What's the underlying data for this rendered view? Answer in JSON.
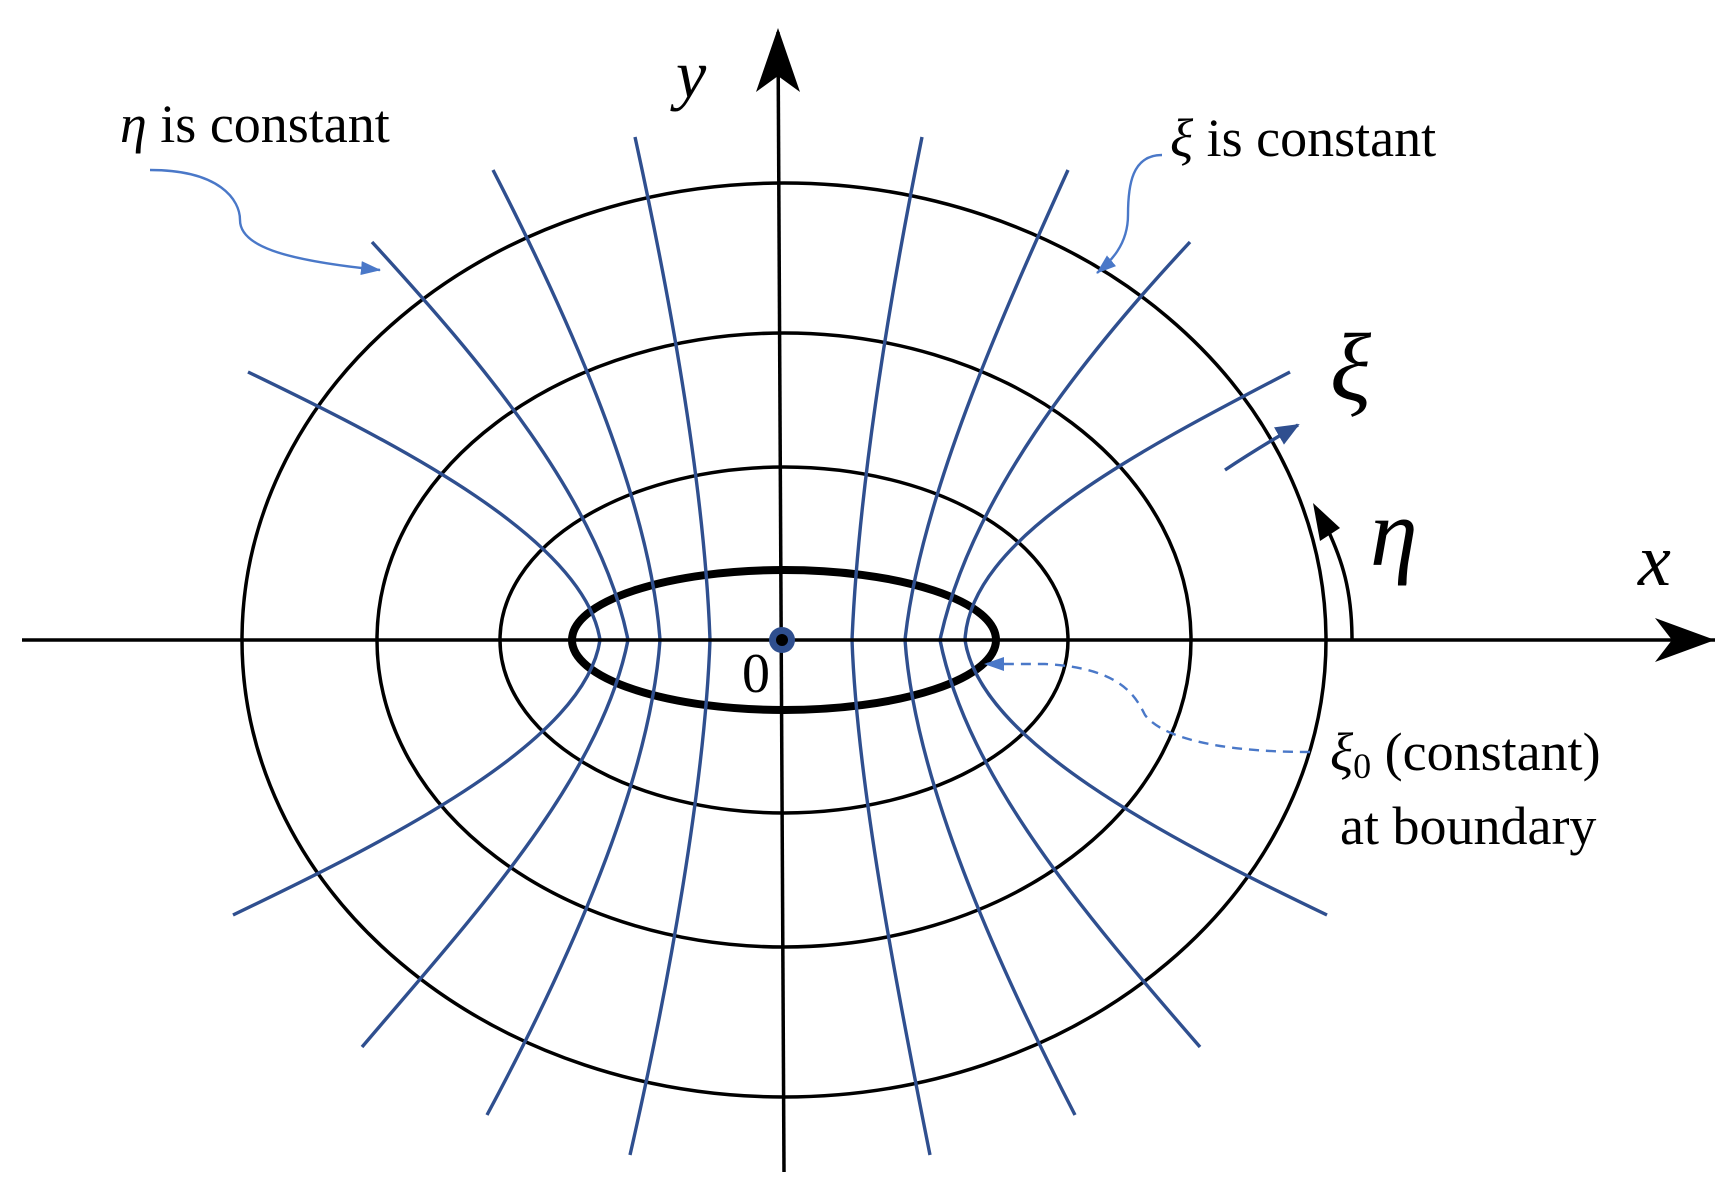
{
  "axes": {
    "x_label": "x",
    "y_label": "y",
    "origin_label": "0"
  },
  "coordinate_labels": {
    "xi": "ξ",
    "eta": "η"
  },
  "annotations": {
    "eta_constant": {
      "symbol": "η",
      "text": "is constant"
    },
    "xi_constant": {
      "symbol": "ξ",
      "text": "is constant"
    },
    "boundary": {
      "symbol": "ξ",
      "subscript": "0",
      "line1": "(constant)",
      "line2": "at boundary"
    }
  },
  "colors": {
    "curve_blue": "#2f4f8f",
    "callout_blue": "#4a78c8",
    "ink": "#000000"
  }
}
